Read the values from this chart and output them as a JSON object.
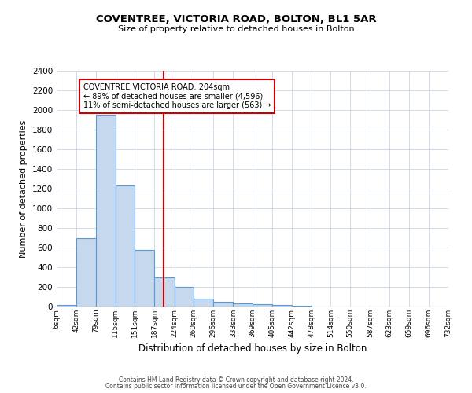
{
  "title": "COVENTREE, VICTORIA ROAD, BOLTON, BL1 5AR",
  "subtitle": "Size of property relative to detached houses in Bolton",
  "xlabel": "Distribution of detached houses by size in Bolton",
  "ylabel": "Number of detached properties",
  "bin_edges": [
    6,
    42,
    79,
    115,
    151,
    187,
    224,
    260,
    296,
    333,
    369,
    405,
    442,
    478,
    514,
    550,
    587,
    623,
    659,
    696,
    732
  ],
  "bar_heights": [
    15,
    700,
    1950,
    1230,
    575,
    300,
    200,
    80,
    45,
    30,
    25,
    15,
    8,
    3,
    1,
    0,
    0,
    0,
    0,
    0
  ],
  "bar_color": "#c5d8ed",
  "bar_edge_color": "#5b9bd5",
  "vline_x": 204,
  "vline_color": "#cc0000",
  "annotation_title": "COVENTREE VICTORIA ROAD: 204sqm",
  "annotation_line1": "← 89% of detached houses are smaller (4,596)",
  "annotation_line2": "11% of semi-detached houses are larger (563) →",
  "annotation_box_color": "#cc0000",
  "ylim": [
    0,
    2400
  ],
  "yticks": [
    0,
    200,
    400,
    600,
    800,
    1000,
    1200,
    1400,
    1600,
    1800,
    2000,
    2200,
    2400
  ],
  "footer1": "Contains HM Land Registry data © Crown copyright and database right 2024.",
  "footer2": "Contains public sector information licensed under the Open Government Licence v3.0.",
  "background_color": "#ffffff",
  "grid_color": "#c0cfe0"
}
